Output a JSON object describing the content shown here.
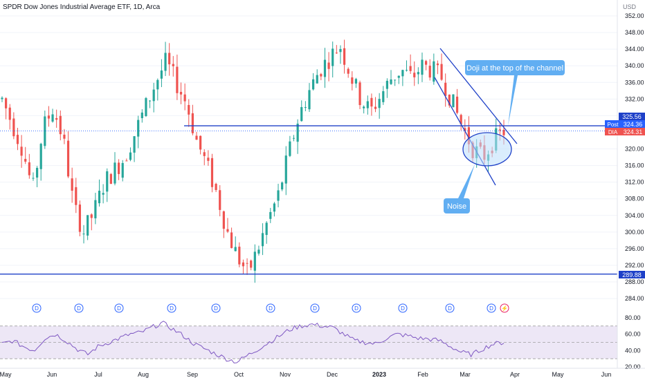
{
  "header": {
    "title": "SPDR Dow Jones Industrial Average ETF, 1D, Arca"
  },
  "colors": {
    "up": "#26a69a",
    "down": "#ef5350",
    "drawing": "#1e40c8",
    "callout": "#61aef2",
    "rsi_line": "#7e57c2",
    "rsi_band": "#ede7f6",
    "post_badge": "#2962ff",
    "price_badge": "#ef5350"
  },
  "price_axis": {
    "currency": "USD",
    "ticks": [
      "352.00",
      "348.00",
      "344.00",
      "340.00",
      "336.00",
      "332.00",
      "328.00",
      "320.00",
      "316.00",
      "312.00",
      "308.00",
      "304.00",
      "300.00",
      "296.00",
      "292.00",
      "288.00",
      "284.00"
    ]
  },
  "badges": {
    "resistance": "325.56",
    "post_label": "Post",
    "post_value": "324.36",
    "symbol_label": "DIA",
    "symbol_value": "324.31",
    "support": "289.88"
  },
  "rsi_axis": {
    "ticks": [
      "80.00",
      "60.00",
      "40.00",
      "20.00"
    ]
  },
  "time_axis": {
    "labels": [
      "May",
      "Jun",
      "Jul",
      "Aug",
      "Sep",
      "Oct",
      "Nov",
      "Dec",
      "2023",
      "Feb",
      "Mar",
      "Apr",
      "May",
      "Jun"
    ]
  },
  "markers": {
    "dividend_letter": "D",
    "dividend_count": 11,
    "split_symbol": "⚡"
  },
  "annotations": {
    "callout_top": "Doji at the top of the channel",
    "callout_noise": "Noise"
  },
  "chart_data": {
    "type": "candlestick",
    "title": "SPDR Dow Jones Industrial Average ETF, 1D, Arca",
    "ylabel": "USD",
    "ylim": [
      283,
      353
    ],
    "series": [
      {
        "name": "DIA",
        "points": [
          {
            "m": "May",
            "close": 332
          },
          {
            "m": "May",
            "close": 326
          },
          {
            "m": "May",
            "close": 320
          },
          {
            "m": "May",
            "close": 310
          },
          {
            "m": "Jun",
            "close": 325
          },
          {
            "m": "Jun",
            "close": 330
          },
          {
            "m": "Jun",
            "close": 322
          },
          {
            "m": "Jun",
            "close": 306
          },
          {
            "m": "Jun",
            "close": 300
          },
          {
            "m": "Jul",
            "close": 305
          },
          {
            "m": "Jul",
            "close": 312
          },
          {
            "m": "Jul",
            "close": 315
          },
          {
            "m": "Jul",
            "close": 318
          },
          {
            "m": "Jul",
            "close": 324
          },
          {
            "m": "Aug",
            "close": 330
          },
          {
            "m": "Aug",
            "close": 336
          },
          {
            "m": "Aug",
            "close": 341
          },
          {
            "m": "Aug",
            "close": 336
          },
          {
            "m": "Aug",
            "close": 331
          },
          {
            "m": "Sep",
            "close": 322
          },
          {
            "m": "Sep",
            "close": 316
          },
          {
            "m": "Sep",
            "close": 309
          },
          {
            "m": "Sep",
            "close": 300
          },
          {
            "m": "Sep",
            "close": 294
          },
          {
            "m": "Oct",
            "close": 290
          },
          {
            "m": "Oct",
            "close": 296
          },
          {
            "m": "Oct",
            "close": 303
          },
          {
            "m": "Oct",
            "close": 309
          },
          {
            "m": "Oct",
            "close": 319
          },
          {
            "m": "Nov",
            "close": 328
          },
          {
            "m": "Nov",
            "close": 334
          },
          {
            "m": "Nov",
            "close": 339
          },
          {
            "m": "Nov",
            "close": 342
          },
          {
            "m": "Dec",
            "close": 345
          },
          {
            "m": "Dec",
            "close": 338
          },
          {
            "m": "Dec",
            "close": 332
          },
          {
            "m": "Dec",
            "close": 329
          },
          {
            "m": "2023",
            "close": 333
          },
          {
            "m": "2023",
            "close": 337
          },
          {
            "m": "2023",
            "close": 339
          },
          {
            "m": "2023",
            "close": 337
          },
          {
            "m": "Feb",
            "close": 340
          },
          {
            "m": "Feb",
            "close": 339
          },
          {
            "m": "Feb",
            "close": 337
          },
          {
            "m": "Feb",
            "close": 331
          },
          {
            "m": "Mar",
            "close": 325
          },
          {
            "m": "Mar",
            "close": 320
          },
          {
            "m": "Mar",
            "close": 318
          },
          {
            "m": "Mar",
            "close": 322
          },
          {
            "m": "Mar",
            "close": 324.31
          }
        ]
      }
    ],
    "levels": [
      {
        "price": 325.56
      },
      {
        "price": 289.88
      }
    ],
    "channel": [
      {
        "from": {
          "x": 636,
          "y": 70
        },
        "to": {
          "x": 747,
          "y": 208
        }
      },
      {
        "from": {
          "x": 628,
          "y": 112
        },
        "to": {
          "x": 716,
          "y": 268
        }
      }
    ],
    "rsi": {
      "bands": [
        70,
        50,
        30
      ],
      "ylim": [
        15,
        85
      ],
      "values": [
        48,
        52,
        45,
        40,
        55,
        60,
        52,
        42,
        35,
        45,
        50,
        55,
        60,
        62,
        68,
        74,
        66,
        58,
        48,
        42,
        36,
        30,
        26,
        34,
        42,
        50,
        58,
        66,
        70,
        72,
        70,
        68,
        60,
        52,
        50,
        48,
        55,
        60,
        58,
        55,
        54,
        52,
        45,
        38,
        35,
        42,
        48,
        50
      ]
    },
    "legend": "none",
    "grid": true
  }
}
